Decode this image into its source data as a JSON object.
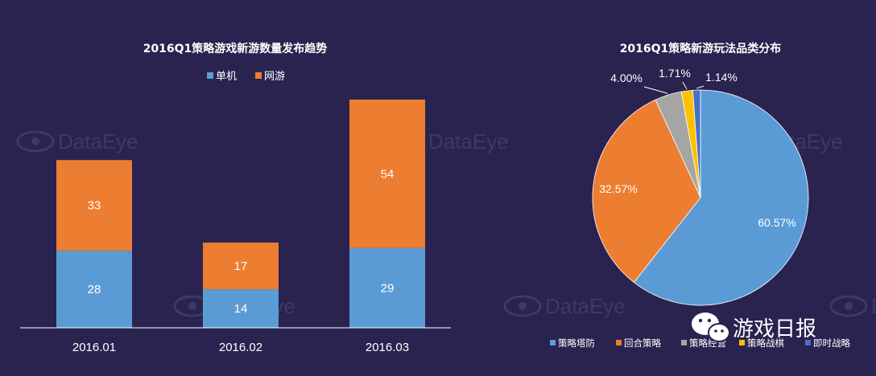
{
  "chart_data": [
    {
      "type": "bar",
      "stacked": true,
      "title": "2016Q1策略游戏新游数量发布趋势",
      "categories": [
        "2016.01",
        "2016.02",
        "2016.03"
      ],
      "series": [
        {
          "name": "单机",
          "values": [
            28,
            14,
            29
          ],
          "color": "#5b9bd5"
        },
        {
          "name": "网游",
          "values": [
            33,
            17,
            54
          ],
          "color": "#ed7d31"
        }
      ],
      "ylim": [
        0,
        90
      ],
      "legend_position": "top-center",
      "grid": false
    },
    {
      "type": "pie",
      "title": "2016Q1策略新游玩法品类分布",
      "slices": [
        {
          "name": "策略塔防",
          "value": 60.57,
          "label": "60.57%",
          "color": "#5b9bd5"
        },
        {
          "name": "回合策略",
          "value": 32.57,
          "label": "32.57%",
          "color": "#ed7d31"
        },
        {
          "name": "策略经营",
          "value": 4.0,
          "label": "4.00%",
          "color": "#a5a5a5"
        },
        {
          "name": "策略战棋",
          "value": 1.71,
          "label": "1.71%",
          "color": "#ffc000"
        },
        {
          "name": "即时战略",
          "value": 1.14,
          "label": "1.14%",
          "color": "#4472c4"
        }
      ],
      "legend_position": "bottom"
    }
  ],
  "watermark": {
    "text": "DataEye"
  },
  "logo": {
    "text": "游戏日报",
    "icon": "wechat-icon"
  }
}
